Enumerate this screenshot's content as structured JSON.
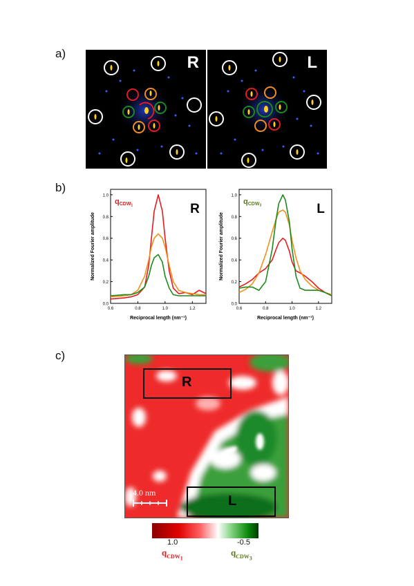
{
  "panels": {
    "a": "a)",
    "b": "b)",
    "c": "c)"
  },
  "fft": {
    "left_tag": "R",
    "right_tag": "L"
  },
  "colors": {
    "red": "#e41a1c",
    "orange": "#f28e1c",
    "green": "#1a8a1a",
    "white": "#ffffff"
  },
  "chart_data": [
    {
      "type": "line",
      "panel_tag": "R",
      "annotation": {
        "text": "q",
        "sub": "CDW",
        "subsub": "1",
        "color": "#e41a1c"
      },
      "xlabel": "Reciprocal length (nm⁻¹)",
      "ylabel": "Normalized Fourier amplitude",
      "xlim": [
        0.6,
        1.3
      ],
      "ylim": [
        0,
        1.05
      ],
      "xticks": [
        "0.6",
        "0.8",
        "1.0",
        "1.2"
      ],
      "yticks": [
        "0.0",
        "0.2",
        "0.4",
        "0.6",
        "0.8",
        "1.0"
      ],
      "series": [
        {
          "color": "#e41a1c",
          "x": [
            0.6,
            0.7,
            0.75,
            0.8,
            0.85,
            0.88,
            0.9,
            0.92,
            0.95,
            0.98,
            1.0,
            1.03,
            1.06,
            1.1,
            1.15,
            1.2,
            1.25,
            1.3
          ],
          "y": [
            0.04,
            0.05,
            0.06,
            0.08,
            0.15,
            0.35,
            0.6,
            0.85,
            1.0,
            0.85,
            0.6,
            0.3,
            0.14,
            0.09,
            0.1,
            0.08,
            0.12,
            0.09
          ]
        },
        {
          "color": "#f28e1c",
          "x": [
            0.6,
            0.7,
            0.75,
            0.8,
            0.85,
            0.88,
            0.9,
            0.92,
            0.95,
            0.98,
            1.0,
            1.03,
            1.06,
            1.1,
            1.15,
            1.2,
            1.25,
            1.3
          ],
          "y": [
            0.06,
            0.07,
            0.08,
            0.12,
            0.25,
            0.4,
            0.52,
            0.6,
            0.64,
            0.6,
            0.52,
            0.35,
            0.2,
            0.12,
            0.1,
            0.09,
            0.08,
            0.08
          ]
        },
        {
          "color": "#1a8a1a",
          "x": [
            0.6,
            0.7,
            0.75,
            0.8,
            0.85,
            0.88,
            0.9,
            0.92,
            0.95,
            0.98,
            1.0,
            1.03,
            1.06,
            1.1,
            1.15,
            1.2,
            1.25,
            1.3
          ],
          "y": [
            0.07,
            0.08,
            0.08,
            0.1,
            0.15,
            0.25,
            0.35,
            0.42,
            0.45,
            0.38,
            0.25,
            0.14,
            0.08,
            0.07,
            0.07,
            0.07,
            0.07,
            0.07
          ]
        }
      ]
    },
    {
      "type": "line",
      "panel_tag": "L",
      "annotation": {
        "text": "q",
        "sub": "CDW",
        "subsub": "3",
        "color": "#5a7a1a"
      },
      "xlabel": "Reciprocal length (nm⁻¹)",
      "ylabel": "Normalized Fourier amplitude",
      "xlim": [
        0.6,
        1.3
      ],
      "ylim": [
        0,
        1.05
      ],
      "xticks": [
        "0.6",
        "0.8",
        "1.0",
        "1.2"
      ],
      "yticks": [
        "0.0",
        "0.2",
        "0.4",
        "0.6",
        "0.8",
        "1.0"
      ],
      "series": [
        {
          "color": "#e41a1c",
          "x": [
            0.6,
            0.65,
            0.7,
            0.75,
            0.8,
            0.85,
            0.88,
            0.9,
            0.93,
            0.95,
            0.98,
            1.0,
            1.03,
            1.06,
            1.1,
            1.15,
            1.2,
            1.25,
            1.3
          ],
          "y": [
            0.15,
            0.18,
            0.22,
            0.28,
            0.32,
            0.4,
            0.5,
            0.56,
            0.6,
            0.58,
            0.48,
            0.38,
            0.3,
            0.28,
            0.25,
            0.2,
            0.14,
            0.1,
            0.07
          ]
        },
        {
          "color": "#f28e1c",
          "x": [
            0.6,
            0.65,
            0.7,
            0.75,
            0.8,
            0.85,
            0.88,
            0.9,
            0.93,
            0.95,
            0.98,
            1.0,
            1.03,
            1.06,
            1.1,
            1.15,
            1.2,
            1.25,
            1.3
          ],
          "y": [
            0.1,
            0.13,
            0.18,
            0.28,
            0.45,
            0.66,
            0.78,
            0.84,
            0.86,
            0.84,
            0.72,
            0.58,
            0.42,
            0.3,
            0.22,
            0.16,
            0.12,
            0.1,
            0.08
          ]
        },
        {
          "color": "#1a8a1a",
          "x": [
            0.6,
            0.65,
            0.7,
            0.75,
            0.8,
            0.85,
            0.88,
            0.9,
            0.93,
            0.95,
            0.98,
            1.0,
            1.03,
            1.06,
            1.1,
            1.15,
            1.2,
            1.25,
            1.3
          ],
          "y": [
            0.14,
            0.15,
            0.15,
            0.12,
            0.2,
            0.5,
            0.78,
            0.92,
            1.0,
            0.95,
            0.75,
            0.5,
            0.25,
            0.14,
            0.12,
            0.12,
            0.12,
            0.1,
            0.07
          ]
        }
      ]
    }
  ],
  "map": {
    "region_r": "R",
    "region_l": "L",
    "scale_label": "4.0 nm",
    "colorbar": {
      "min_label": "1.0",
      "max_label": "-0.5"
    },
    "q1": {
      "text": "q",
      "sub": "CDW",
      "subsub": "1"
    },
    "q3": {
      "text": "q",
      "sub": "CDW",
      "subsub": "3"
    }
  }
}
